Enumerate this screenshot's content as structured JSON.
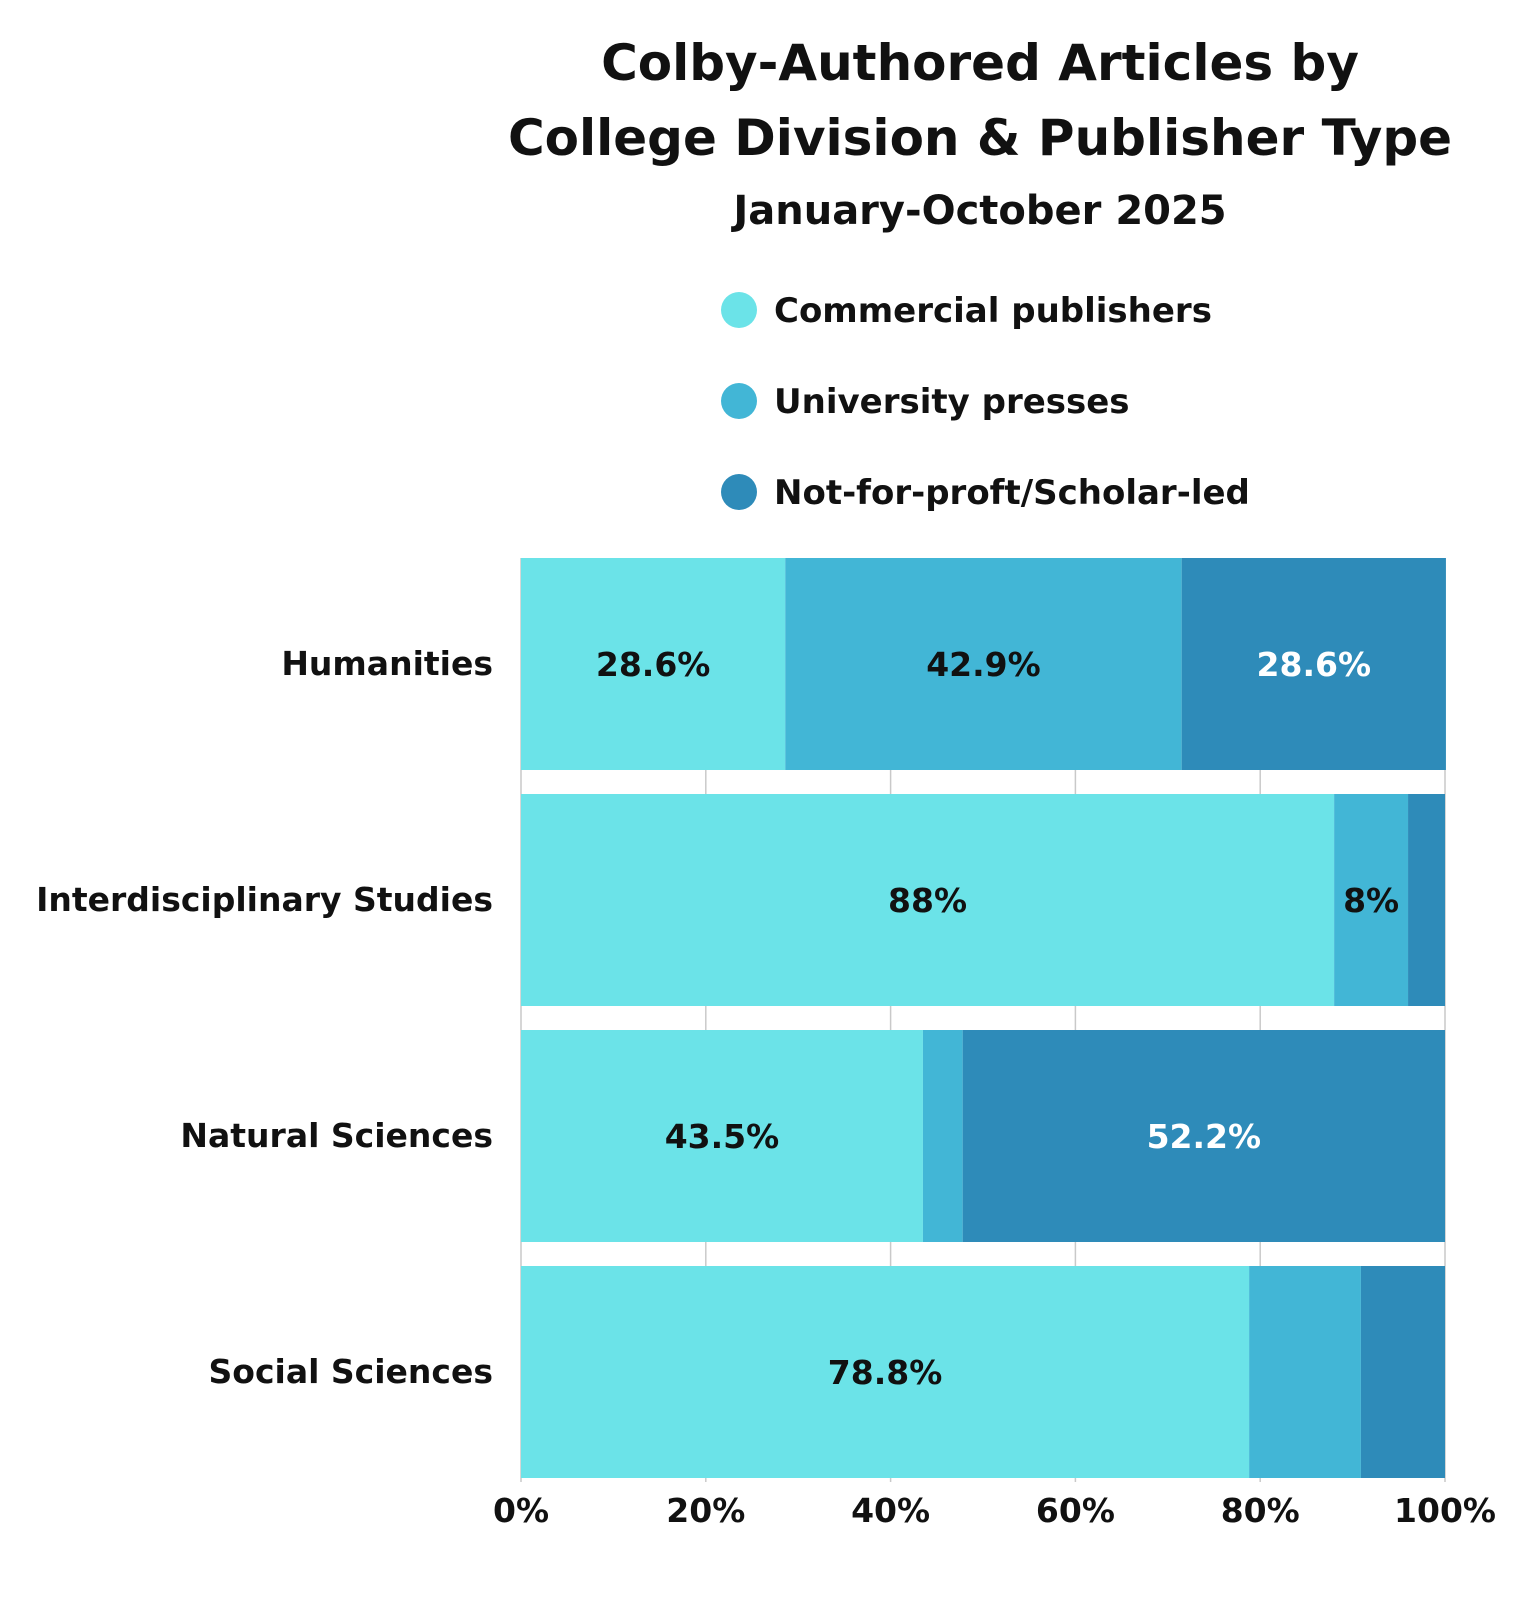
{
  "chart_data": {
    "type": "bar",
    "orientation": "horizontal",
    "stacked": true,
    "title": "Colby-Authored Articles by College Division & Publisher Type",
    "title_lines": [
      "Colby-Authored Articles by",
      "College Division & Publisher Type"
    ],
    "subtitle": "January-October 2025",
    "xlabel": "",
    "ylabel": "",
    "xlim": [
      0,
      100
    ],
    "x_ticks": [
      0,
      20,
      40,
      60,
      80,
      100
    ],
    "x_tick_labels": [
      "0%",
      "20%",
      "40%",
      "60%",
      "80%",
      "100%"
    ],
    "grid": true,
    "legend_position": "top",
    "categories": [
      "Humanities",
      "Interdisciplinary Studies",
      "Natural Sciences",
      "Social Sciences"
    ],
    "series": [
      {
        "name": "Commercial publishers",
        "color": "#6be3e8",
        "label_color": "#111111",
        "values": [
          28.6,
          88,
          43.5,
          78.8
        ],
        "labels": [
          "28.6%",
          "88%",
          "43.5%",
          "78.8%"
        ]
      },
      {
        "name": "University presses",
        "color": "#42b6d6",
        "label_color": "#111111",
        "values": [
          42.9,
          8,
          4.3,
          12.1
        ],
        "labels": [
          "42.9%",
          "8%",
          "",
          ""
        ]
      },
      {
        "name": "Not-for-proft/Scholar-led",
        "color": "#2e8bb9",
        "label_color": "#ffffff",
        "values": [
          28.6,
          4,
          52.2,
          9.1
        ],
        "labels": [
          "28.6%",
          "",
          "52.2%",
          ""
        ]
      }
    ]
  }
}
